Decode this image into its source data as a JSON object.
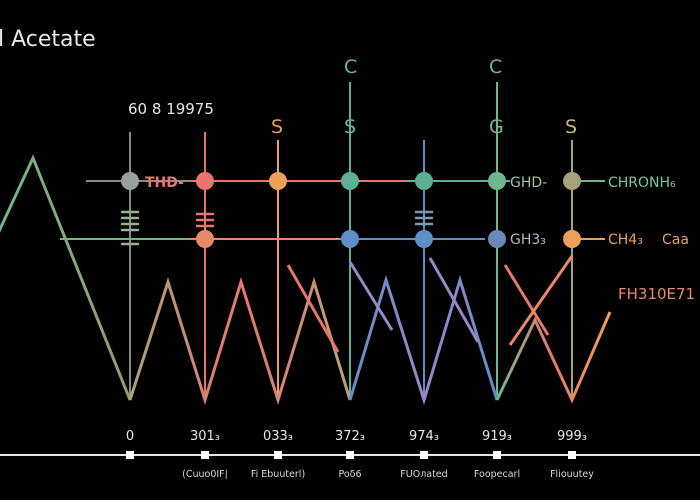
{
  "title": "l Acetate",
  "top_left_label": "60 8 19975",
  "colors": {
    "background": "#000000",
    "line_gray": "#8a8a8a",
    "pink": "#e8766f",
    "salmon": "#e88a6a",
    "orange": "#eda05a",
    "teal": "#5fae96",
    "green": "#6fb78a",
    "blue": "#5f8fc8",
    "olive": "#a8a27a",
    "purple": "#9a86c8"
  },
  "top_letters": [
    "S",
    "C",
    "S",
    "C",
    "G",
    "S"
  ],
  "columns": [
    {
      "value": "0",
      "label": "(Cuuo0IF|"
    },
    {
      "value": "301₃",
      "label": "Fi Ebuuterl)"
    },
    {
      "value": "033₃",
      "label": "Poδ6"
    },
    {
      "value": "372₃",
      "label": "FUOлated"
    },
    {
      "value": "974₃",
      "label": "Fooрecarl"
    },
    {
      "value": "919₃",
      "label": "Flіouutey"
    },
    {
      "value": "999₃",
      "label": ""
    }
  ],
  "node_labels": {
    "thd": "THD-",
    "ghd": "GHD-",
    "gh3": "GH3₃",
    "chronh": "CHRONH₆",
    "ch4": "CH4₃",
    "ca": "Caa",
    "fh": "FH310E71"
  }
}
